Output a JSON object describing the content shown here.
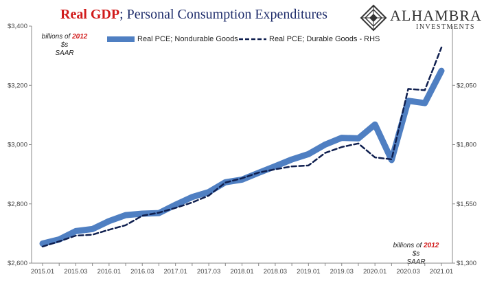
{
  "header": {
    "title_red": "Real GDP",
    "title_rest": "; Personal Consumption Expenditures"
  },
  "logo": {
    "name": "ALHAMBRA",
    "sub": "INVESTMENTS",
    "icon": "diamond-icon"
  },
  "unit_note_left": {
    "prefix": "billions of ",
    "year": "2012",
    "suffix": " $s",
    "line2": "SAAR"
  },
  "unit_note_right": {
    "prefix": "billions of ",
    "year": "2012",
    "suffix": " $s",
    "line2": "SAAR"
  },
  "colors": {
    "nondurable": "#4f7fc2",
    "durable": "#0f1f4f",
    "title_blue": "#1f2d6b",
    "accent_red": "#d11a1a"
  },
  "chart_data": {
    "type": "line",
    "title": "Real GDP; Personal Consumption Expenditures",
    "x": [
      "2015.01",
      "2015.02",
      "2015.03",
      "2015.04",
      "2016.01",
      "2016.02",
      "2016.03",
      "2016.04",
      "2017.01",
      "2017.02",
      "2017.03",
      "2017.04",
      "2018.01",
      "2018.02",
      "2018.03",
      "2018.04",
      "2019.01",
      "2019.02",
      "2019.03",
      "2019.04",
      "2020.01",
      "2020.02",
      "2020.03",
      "2020.04",
      "2021.01"
    ],
    "x_tick_labels": [
      "2015.01",
      "2015.03",
      "2016.01",
      "2016.03",
      "2017.01",
      "2017.03",
      "2018.01",
      "2018.03",
      "2019.01",
      "2019.03",
      "2020.01",
      "2020.03",
      "2021.01"
    ],
    "y_left": {
      "min": 2600,
      "max": 3400,
      "ticks": [
        "$2,600",
        "$2,800",
        "$3,000",
        "$3,200",
        "$3,400"
      ],
      "tick_values": [
        2600,
        2800,
        3000,
        3200,
        3400
      ]
    },
    "y_right": {
      "min": 1300,
      "max": 2300,
      "ticks": [
        "$1,300",
        "$1,550",
        "$1,800",
        "$2,050"
      ],
      "tick_values": [
        1300,
        1550,
        1800,
        2050
      ]
    },
    "grid": false,
    "legend_position": "top",
    "series": [
      {
        "name": "Real PCE; Nondurable Goods",
        "axis": "left",
        "style": "solid-thick",
        "values": [
          2666,
          2680,
          2708,
          2715,
          2742,
          2762,
          2767,
          2769,
          2797,
          2823,
          2840,
          2873,
          2882,
          2905,
          2927,
          2950,
          2968,
          3000,
          3023,
          3021,
          3068,
          2948,
          3148,
          3140,
          3249
        ]
      },
      {
        "name": "Real PCE; Durable Goods - RHS",
        "axis": "right",
        "style": "dashed",
        "values": [
          1370,
          1392,
          1416,
          1420,
          1441,
          1460,
          1500,
          1513,
          1533,
          1556,
          1585,
          1640,
          1658,
          1682,
          1696,
          1708,
          1712,
          1765,
          1790,
          1805,
          1746,
          1738,
          2035,
          2030,
          2210
        ]
      }
    ]
  }
}
